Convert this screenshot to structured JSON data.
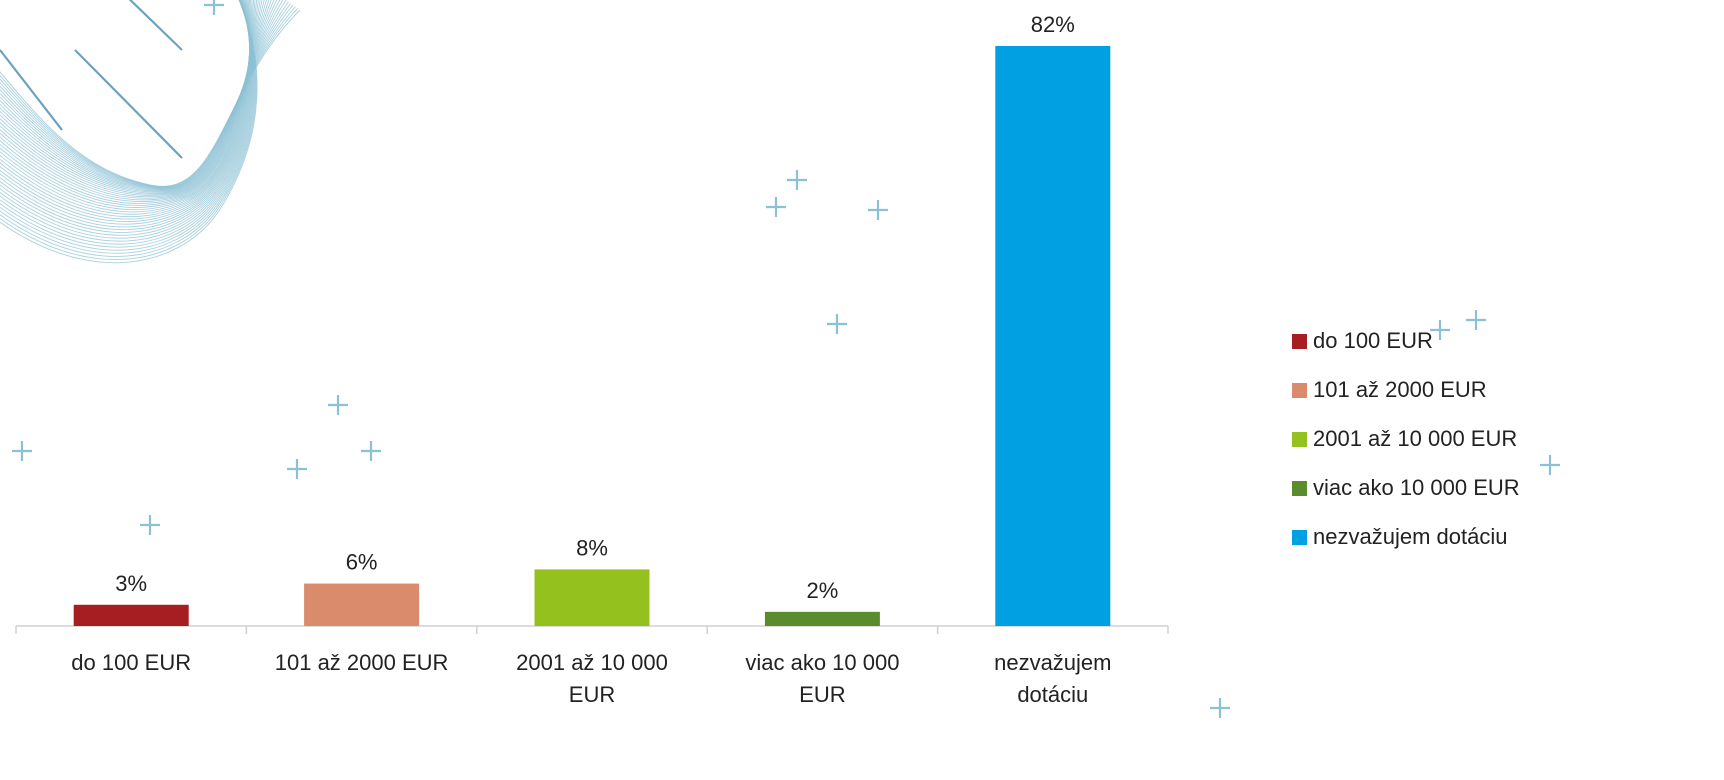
{
  "chart_data": {
    "type": "bar",
    "categories": [
      "do 100 EUR",
      "101 až 2000 EUR",
      "2001 až 10 000 EUR",
      "viac ako 10 000 EUR",
      "nezvažujem dotáciu"
    ],
    "values": [
      3,
      6,
      8,
      2,
      82
    ],
    "value_labels": [
      "3%",
      "6%",
      "8%",
      "2%",
      "82%"
    ],
    "colors": [
      "#a61e22",
      "#d98b6c",
      "#95c11f",
      "#5a8c2e",
      "#00a0e3"
    ],
    "title": "",
    "xlabel": "",
    "ylabel": "",
    "ylim": [
      0,
      85
    ],
    "grid": false,
    "legend_position": "right"
  },
  "legend": {
    "items": [
      {
        "label": "do 100 EUR",
        "color": "#a61e22"
      },
      {
        "label": "101 až 2000 EUR",
        "color": "#d98b6c"
      },
      {
        "label": "2001 až 10 000 EUR",
        "color": "#95c11f"
      },
      {
        "label": "viac ako 10 000 EUR",
        "color": "#5a8c2e"
      },
      {
        "label": "nezvažujem dotáciu",
        "color": "#00a0e3"
      }
    ]
  },
  "decoration": {
    "accent_color": "#8cc0d4",
    "icon": "plus-sign-decoration-icon"
  }
}
